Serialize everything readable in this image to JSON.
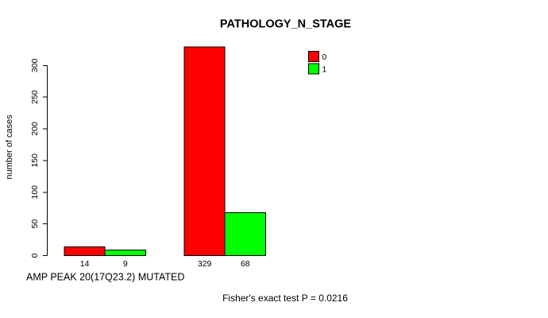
{
  "chart_data": {
    "type": "bar",
    "title": "PATHOLOGY_N_STAGE",
    "ylabel": "number of cases",
    "xlabel": "AMP PEAK 20(17Q23.2) MUTATED",
    "annotation": "Fisher's exact test P = 0.0216",
    "n_groups": 2,
    "series": [
      {
        "name": "0",
        "color": "#ff0000",
        "values": [
          14,
          329
        ]
      },
      {
        "name": "1",
        "color": "#00ff00",
        "values": [
          9,
          68
        ]
      }
    ],
    "value_labels_shown": true,
    "yticks": [
      0,
      50,
      100,
      150,
      200,
      250,
      300
    ],
    "ylim": [
      0,
      343
    ],
    "grid": false,
    "legend": {
      "position": "top-right",
      "entries": [
        {
          "label": "0",
          "color": "#ff0000"
        },
        {
          "label": "1",
          "color": "#00ff00"
        }
      ]
    },
    "bar_border_color": "#000000",
    "axis_color": "#000000",
    "background_color": "#ffffff"
  }
}
